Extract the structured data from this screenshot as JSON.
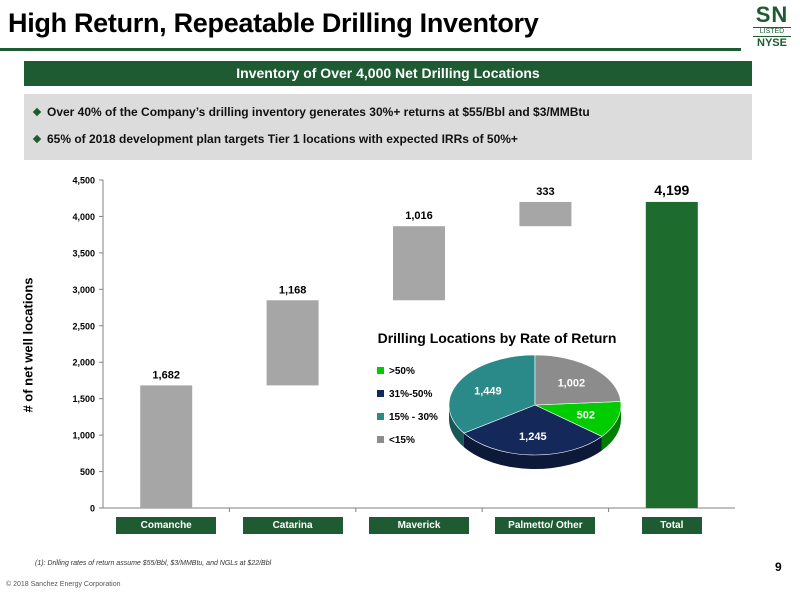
{
  "title": "High Return, Repeatable Drilling Inventory",
  "logo": {
    "ticker": "SN",
    "listed": "LISTED",
    "exchange": "NYSE"
  },
  "banner": "Inventory of Over 4,000 Net Drilling Locations",
  "bullets": [
    "Over 40% of the Company’s drilling inventory generates 30%+ returns at $55/Bbl and $3/MMBtu",
    "65% of 2018 development plan targets Tier 1 locations with expected IRRs of 50%+"
  ],
  "colors": {
    "brand_green": "#1e5a32",
    "bar_gray": "#a6a6a6",
    "total_green": "#1e6b2e"
  },
  "chart_data": [
    {
      "type": "bar",
      "subtype": "waterfall",
      "ylabel": "# of net well locations",
      "ylim": [
        0,
        4500
      ],
      "yticks": [
        0,
        500,
        1000,
        1500,
        2000,
        2500,
        3000,
        3500,
        4000,
        4500
      ],
      "ytick_labels": [
        "0",
        "500",
        "1,000",
        "1,500",
        "2,000",
        "2,500",
        "3,000",
        "3,500",
        "4,000",
        "4,500"
      ],
      "categories": [
        "Comanche",
        "Catarina",
        "Maverick",
        "Palmetto/ Other",
        "Total"
      ],
      "values": [
        1682,
        1168,
        1016,
        333,
        4199
      ],
      "value_labels": [
        "1,682",
        "1,168",
        "1,016",
        "333",
        "4,199"
      ],
      "is_total": [
        false,
        false,
        false,
        false,
        true
      ]
    },
    {
      "type": "pie",
      "title": "Drilling Locations by Rate of Return",
      "labels": [
        ">50%",
        "31%-50%",
        "15% - 30%",
        "<15%"
      ],
      "values": [
        502,
        1245,
        1449,
        1002
      ],
      "value_labels": [
        "502",
        "1,245",
        "1,449",
        "1,002"
      ],
      "colors": [
        "#00cc00",
        "#14285a",
        "#2a8a8a",
        "#8c8c8c"
      ],
      "legend_position": "left"
    }
  ],
  "footnote": "(1): Drilling rates of return assume $55/Bbl, $3/MMBtu, and NGLs at $22/Bbl",
  "page_number": "9",
  "copyright": "© 2018 Sanchez Energy Corporation"
}
